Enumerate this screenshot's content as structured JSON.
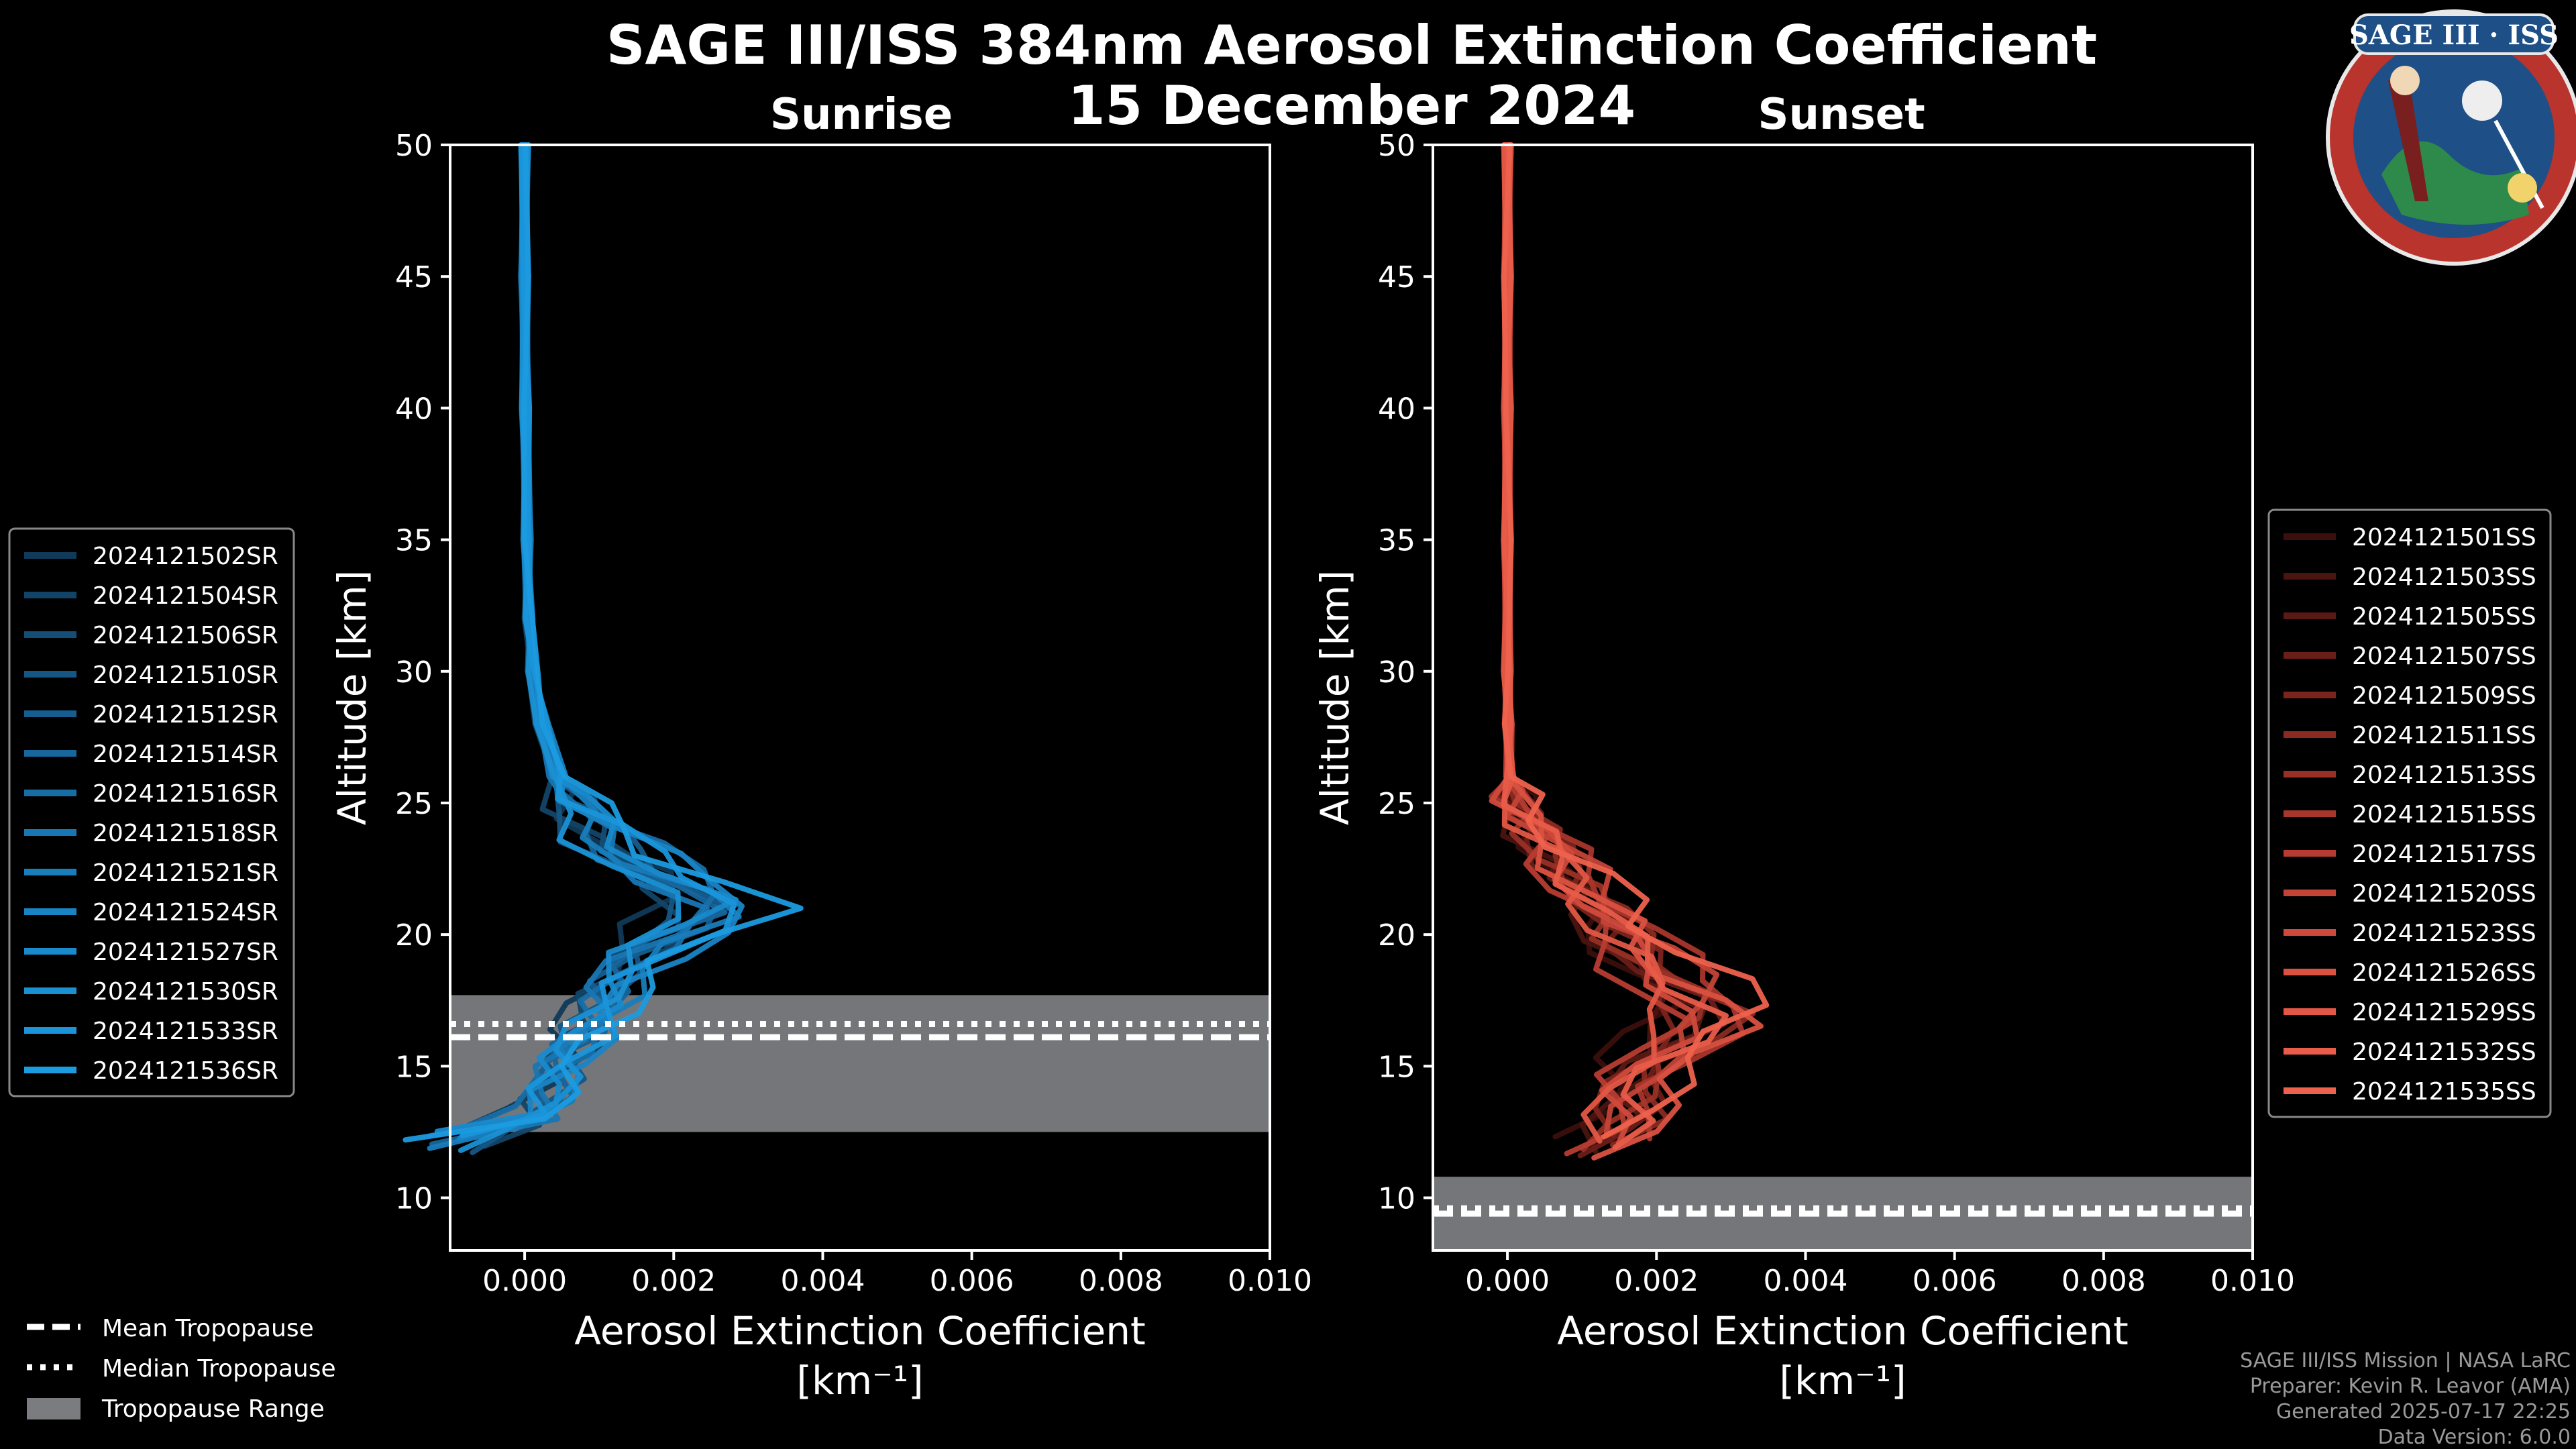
{
  "header": {
    "title_line1": "SAGE III/ISS 384nm Aerosol Extinction Coefficient",
    "title_line2": "15 December 2024"
  },
  "logo": {
    "text": "SAGE III · ISS",
    "icon": "sage-iii-iss-mission-patch"
  },
  "credits": {
    "line1": "SAGE III/ISS Mission | NASA LaRC",
    "line2": "Preparer: Kevin R. Leavor (AMA)",
    "line3": "Generated 2025-07-17 22:25",
    "line4": "Data Version: 6.0.0"
  },
  "tropopause_legend": {
    "mean": "Mean Tropopause",
    "median": "Median Tropopause",
    "range": "Tropopause Range"
  },
  "colors": {
    "sunrise": "#1a8fd6",
    "sunset": "#e85a48",
    "range_fill": "#7a7c80"
  },
  "chart_data": [
    {
      "type": "line",
      "title": "Sunrise",
      "xlabel": "Aerosol Extinction Coefficient",
      "xlabel_units": "[km⁻¹]",
      "ylabel": "Altitude [km]",
      "xlim": [
        -0.001,
        0.01
      ],
      "ylim": [
        8,
        50
      ],
      "xticks": [
        0.0,
        0.002,
        0.004,
        0.006,
        0.008,
        0.01
      ],
      "xtick_labels": [
        "0.000",
        "0.002",
        "0.004",
        "0.006",
        "0.008",
        "0.010"
      ],
      "yticks": [
        10,
        15,
        20,
        25,
        30,
        35,
        40,
        45,
        50
      ],
      "tropopause": {
        "mean": 16.1,
        "median": 16.6,
        "range": [
          12.5,
          17.7
        ]
      },
      "legend_position": "left",
      "base_profile": {
        "altitude": [
          50,
          45,
          40,
          35,
          32,
          30,
          28,
          26,
          25,
          24,
          23,
          22,
          21,
          20,
          19,
          18,
          17,
          16,
          15,
          14,
          13,
          12.2
        ],
        "value": [
          0.0,
          0.0,
          1e-05,
          3e-05,
          5e-05,
          0.0001,
          0.0002,
          0.0004,
          0.0006,
          0.0009,
          0.0013,
          0.0019,
          0.0024,
          0.0019,
          0.0014,
          0.0011,
          0.0009,
          0.0007,
          0.0005,
          0.0003,
          0.0001,
          -0.0009
        ]
      },
      "series": [
        {
          "name": "2024121502SR",
          "scale": 0.85,
          "shift": 0.5,
          "color": "#103a57"
        },
        {
          "name": "2024121504SR",
          "scale": 0.95,
          "shift": -0.3,
          "color": "#124468"
        },
        {
          "name": "2024121506SR",
          "scale": 1.05,
          "shift": 0.2,
          "color": "#144d76"
        },
        {
          "name": "2024121510SR",
          "scale": 0.9,
          "shift": -0.6,
          "color": "#155684"
        },
        {
          "name": "2024121512SR",
          "scale": 1.1,
          "shift": 0.3,
          "color": "#165e90"
        },
        {
          "name": "2024121514SR",
          "scale": 1.0,
          "shift": -0.2,
          "color": "#17669c"
        },
        {
          "name": "2024121516SR",
          "scale": 1.2,
          "shift": 0.6,
          "color": "#176ea7"
        },
        {
          "name": "2024121518SR",
          "scale": 0.95,
          "shift": 0.0,
          "color": "#1876b2"
        },
        {
          "name": "2024121521SR",
          "scale": 1.15,
          "shift": -0.4,
          "color": "#187dbb"
        },
        {
          "name": "2024121524SR",
          "scale": 1.35,
          "shift": 0.1,
          "color": "#1984c4"
        },
        {
          "name": "2024121527SR",
          "scale": 1.05,
          "shift": 0.4,
          "color": "#198acc"
        },
        {
          "name": "2024121530SR",
          "scale": 0.9,
          "shift": -0.5,
          "color": "#1a90d3"
        },
        {
          "name": "2024121533SR",
          "scale": 1.25,
          "shift": 0.2,
          "color": "#1a95da"
        },
        {
          "name": "2024121536SR",
          "scale": 1.4,
          "shift": 0.0,
          "color": "#1b9be0"
        }
      ]
    },
    {
      "type": "line",
      "title": "Sunset",
      "xlabel": "Aerosol Extinction Coefficient",
      "xlabel_units": "[km⁻¹]",
      "ylabel": "Altitude [km]",
      "xlim": [
        -0.001,
        0.01
      ],
      "ylim": [
        8,
        50
      ],
      "xticks": [
        0.0,
        0.002,
        0.004,
        0.006,
        0.008,
        0.01
      ],
      "xtick_labels": [
        "0.000",
        "0.002",
        "0.004",
        "0.006",
        "0.008",
        "0.010"
      ],
      "yticks": [
        10,
        15,
        20,
        25,
        30,
        35,
        40,
        45,
        50
      ],
      "tropopause": {
        "mean": 9.4,
        "median": 9.6,
        "range": [
          8.0,
          10.8
        ]
      },
      "legend_position": "right",
      "base_profile": {
        "altitude": [
          50,
          45,
          40,
          35,
          30,
          28,
          26,
          25,
          24,
          23,
          22,
          21,
          20,
          19,
          18,
          17,
          16,
          15,
          14,
          13,
          12
        ],
        "value": [
          0.0,
          0.0,
          0.0,
          0.0,
          0.0,
          1e-05,
          3e-05,
          0.0001,
          0.0003,
          0.0006,
          0.0009,
          0.0012,
          0.0014,
          0.0018,
          0.0022,
          0.0025,
          0.0022,
          0.0018,
          0.0016,
          0.0015,
          0.0012
        ]
      },
      "series": [
        {
          "name": "2024121501SS",
          "scale": 0.8,
          "shift": 0.4,
          "color": "#3a0f0c"
        },
        {
          "name": "2024121503SS",
          "scale": 0.9,
          "shift": -0.3,
          "color": "#4a1410"
        },
        {
          "name": "2024121505SS",
          "scale": 1.0,
          "shift": 0.2,
          "color": "#5a1914"
        },
        {
          "name": "2024121507SS",
          "scale": 1.1,
          "shift": -0.5,
          "color": "#6a1e18"
        },
        {
          "name": "2024121509SS",
          "scale": 0.95,
          "shift": 0.5,
          "color": "#7a241c"
        },
        {
          "name": "2024121511SS",
          "scale": 1.2,
          "shift": 0.0,
          "color": "#8a2a21"
        },
        {
          "name": "2024121513SS",
          "scale": 1.05,
          "shift": -0.2,
          "color": "#993026"
        },
        {
          "name": "2024121515SS",
          "scale": 1.3,
          "shift": 0.3,
          "color": "#a8362b"
        },
        {
          "name": "2024121517SS",
          "scale": 0.85,
          "shift": -0.4,
          "color": "#b63c31"
        },
        {
          "name": "2024121520SS",
          "scale": 1.15,
          "shift": 0.6,
          "color": "#c34337"
        },
        {
          "name": "2024121523SS",
          "scale": 1.0,
          "shift": 0.1,
          "color": "#cf4a3c"
        },
        {
          "name": "2024121526SS",
          "scale": 1.25,
          "shift": -0.6,
          "color": "#d95141"
        },
        {
          "name": "2024121529SS",
          "scale": 0.9,
          "shift": 0.2,
          "color": "#e25745"
        },
        {
          "name": "2024121532SS",
          "scale": 1.1,
          "shift": -0.1,
          "color": "#e85c49"
        },
        {
          "name": "2024121535SS",
          "scale": 1.35,
          "shift": 0.4,
          "color": "#ee624d"
        }
      ]
    }
  ]
}
